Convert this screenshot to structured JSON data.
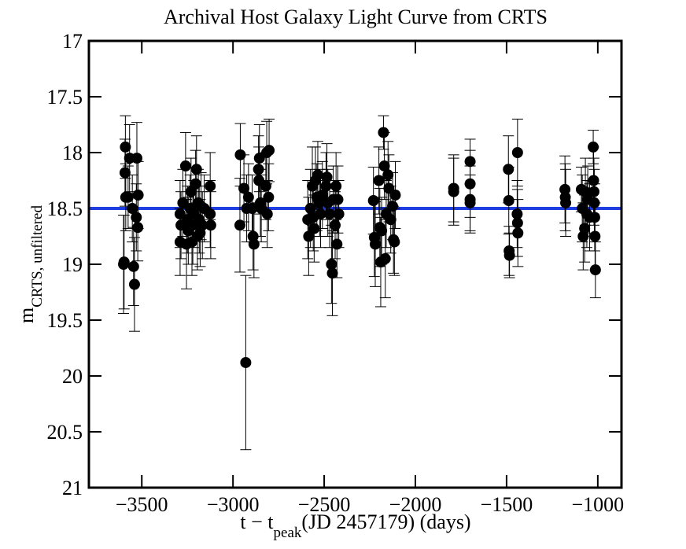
{
  "chart_data": {
    "type": "scatter",
    "title": "Archival Host Galaxy Light Curve from CRTS",
    "xlabel": [
      {
        "text": "t − t"
      },
      {
        "text": "peak",
        "sub": true
      },
      {
        "text": "(JD 2457179) (days)"
      }
    ],
    "ylabel": [
      {
        "text": "m"
      },
      {
        "text": "CRTS, unfiltered",
        "sub": true
      }
    ],
    "xlim": [
      -3790,
      -870
    ],
    "ylim": [
      17,
      21
    ],
    "invert_y": true,
    "xticks": [
      {
        "value": -3500,
        "label": "−3500"
      },
      {
        "value": -3000,
        "label": "−3000"
      },
      {
        "value": -2500,
        "label": "−2500"
      },
      {
        "value": -2000,
        "label": "−2000"
      },
      {
        "value": -1500,
        "label": "−1500"
      },
      {
        "value": -1000,
        "label": "−1000"
      }
    ],
    "yticks": [
      17,
      17.5,
      18,
      18.5,
      19,
      19.5,
      20,
      20.5,
      21
    ],
    "color": "#000000",
    "hline": {
      "value": 18.5,
      "color": "#1f3ee0"
    },
    "x": [
      -3600,
      -3597,
      -3590,
      -3592,
      -3588,
      -3575,
      -3567,
      -3552,
      -3545,
      -3540,
      -3530,
      -3527,
      -3520,
      -3522,
      -3290,
      -3290,
      -3285,
      -3275,
      -3260,
      -3255,
      -3250,
      -3245,
      -3235,
      -3230,
      -3225,
      -3220,
      -3215,
      -3205,
      -3200,
      -3195,
      -3190,
      -3185,
      -3180,
      -3175,
      -3168,
      -3158,
      -3125,
      -3125,
      -3122,
      -2960,
      -2962,
      -2940,
      -2930,
      -2925,
      -2915,
      -2895,
      -2890,
      -2885,
      -2860,
      -2858,
      -2855,
      -2850,
      -2845,
      -2820,
      -2815,
      -2812,
      -2805,
      -2802,
      -2590,
      -2585,
      -2575,
      -2565,
      -2560,
      -2555,
      -2548,
      -2540,
      -2535,
      -2525,
      -2520,
      -2510,
      -2490,
      -2485,
      -2480,
      -2470,
      -2460,
      -2455,
      -2450,
      -2440,
      -2435,
      -2430,
      -2425,
      -2420,
      -2230,
      -2225,
      -2220,
      -2200,
      -2195,
      -2190,
      -2185,
      -2175,
      -2170,
      -2165,
      -2160,
      -2150,
      -2145,
      -2135,
      -2125,
      -2120,
      -2115,
      -2110,
      -1790,
      -1790,
      -1700,
      -1700,
      -1700,
      -1700,
      -1490,
      -1488,
      -1486,
      -1484,
      -1440,
      -1442,
      -1440,
      -1438,
      -1180,
      -1178,
      -1176,
      -1090,
      -1085,
      -1080,
      -1072,
      -1068,
      -1060,
      -1055,
      -1045,
      -1025,
      -1023,
      -1021,
      -1019,
      -1017,
      -1015,
      -1013
    ],
    "y": [
      19.0,
      18.98,
      17.95,
      18.18,
      18.4,
      18.4,
      18.05,
      18.5,
      19.02,
      19.18,
      18.58,
      18.05,
      18.38,
      18.67,
      18.55,
      18.8,
      18.65,
      18.45,
      18.12,
      18.82,
      18.6,
      18.7,
      18.5,
      18.35,
      18.8,
      18.65,
      18.55,
      18.28,
      18.15,
      18.75,
      18.45,
      18.6,
      18.72,
      18.48,
      18.65,
      18.5,
      18.3,
      18.55,
      18.65,
      18.02,
      18.65,
      18.32,
      19.88,
      18.5,
      18.4,
      18.5,
      18.75,
      18.82,
      18.15,
      18.25,
      18.05,
      18.45,
      18.5,
      18.3,
      18.0,
      18.55,
      18.4,
      17.98,
      18.6,
      18.75,
      18.5,
      18.3,
      18.58,
      18.68,
      18.25,
      18.4,
      18.2,
      18.45,
      18.55,
      18.38,
      18.3,
      18.22,
      18.45,
      18.55,
      19.0,
      19.08,
      18.42,
      18.65,
      18.3,
      18.82,
      18.42,
      18.55,
      18.43,
      18.76,
      18.82,
      18.25,
      18.67,
      18.98,
      18.7,
      17.82,
      18.12,
      18.95,
      18.55,
      18.2,
      18.32,
      18.6,
      18.48,
      18.78,
      18.8,
      18.38,
      18.32,
      18.35,
      18.08,
      18.28,
      18.42,
      18.45,
      18.15,
      18.43,
      18.88,
      18.92,
      18.0,
      18.55,
      18.63,
      18.72,
      18.33,
      18.4,
      18.45,
      18.33,
      18.5,
      18.75,
      18.68,
      18.35,
      18.55,
      18.42,
      18.58,
      17.95,
      18.25,
      18.35,
      18.45,
      18.58,
      18.75,
      19.05
    ],
    "yerr": [
      0.44,
      0.42,
      0.28,
      0.3,
      0.3,
      0.28,
      0.3,
      0.3,
      0.35,
      0.42,
      0.3,
      0.32,
      0.3,
      0.3,
      0.3,
      0.3,
      0.3,
      0.3,
      0.3,
      0.4,
      0.3,
      0.3,
      0.3,
      0.3,
      0.3,
      0.35,
      0.3,
      0.3,
      0.3,
      0.3,
      0.3,
      0.3,
      0.3,
      0.3,
      0.3,
      0.3,
      0.3,
      0.3,
      0.3,
      0.28,
      0.42,
      0.3,
      0.78,
      0.3,
      0.3,
      0.3,
      0.3,
      0.3,
      0.3,
      0.3,
      0.3,
      0.3,
      0.3,
      0.3,
      0.28,
      0.3,
      0.3,
      0.28,
      0.35,
      0.35,
      0.35,
      0.35,
      0.3,
      0.3,
      0.3,
      0.3,
      0.3,
      0.3,
      0.3,
      0.3,
      0.3,
      0.3,
      0.3,
      0.3,
      0.35,
      0.38,
      0.3,
      0.3,
      0.3,
      0.3,
      0.3,
      0.3,
      0.3,
      0.35,
      0.38,
      0.3,
      0.35,
      0.4,
      0.3,
      0.15,
      0.3,
      0.35,
      0.3,
      0.3,
      0.3,
      0.3,
      0.3,
      0.3,
      0.3,
      0.3,
      0.3,
      0.3,
      0.2,
      0.3,
      0.3,
      0.25,
      0.3,
      0.3,
      0.22,
      0.2,
      0.3,
      0.3,
      0.3,
      0.3,
      0.3,
      0.3,
      0.3,
      0.2,
      0.3,
      0.3,
      0.3,
      0.3,
      0.3,
      0.3,
      0.3,
      0.15,
      0.3,
      0.3,
      0.3,
      0.3,
      0.3,
      0.25
    ]
  }
}
